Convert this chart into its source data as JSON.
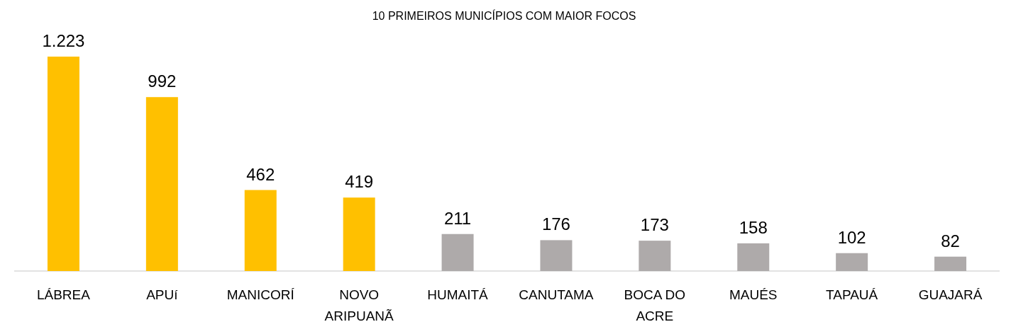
{
  "chart_data": {
    "type": "bar",
    "title": "10 PRIMEIROS MUNICÍPIOS COM MAIOR  FOCOS",
    "categories": [
      "LÁBREA",
      "APUí",
      "MANICORÍ",
      "NOVO ARIPUANÃ",
      "HUMAITÁ",
      "CANUTAMA",
      "BOCA DO ACRE",
      "MAUÉS",
      "TAPAUÁ",
      "GUAJARÁ"
    ],
    "values": [
      1223,
      992,
      462,
      419,
      211,
      176,
      173,
      158,
      102,
      82
    ],
    "colors": [
      "#ffc000",
      "#ffc000",
      "#ffc000",
      "#ffc000",
      "#aeaaaa",
      "#aeaaaa",
      "#aeaaaa",
      "#aeaaaa",
      "#aeaaaa",
      "#aeaaaa"
    ],
    "value_labels": [
      "1.223",
      "992",
      "462",
      "419",
      "211",
      "176",
      "173",
      "158",
      "102",
      "82"
    ]
  }
}
